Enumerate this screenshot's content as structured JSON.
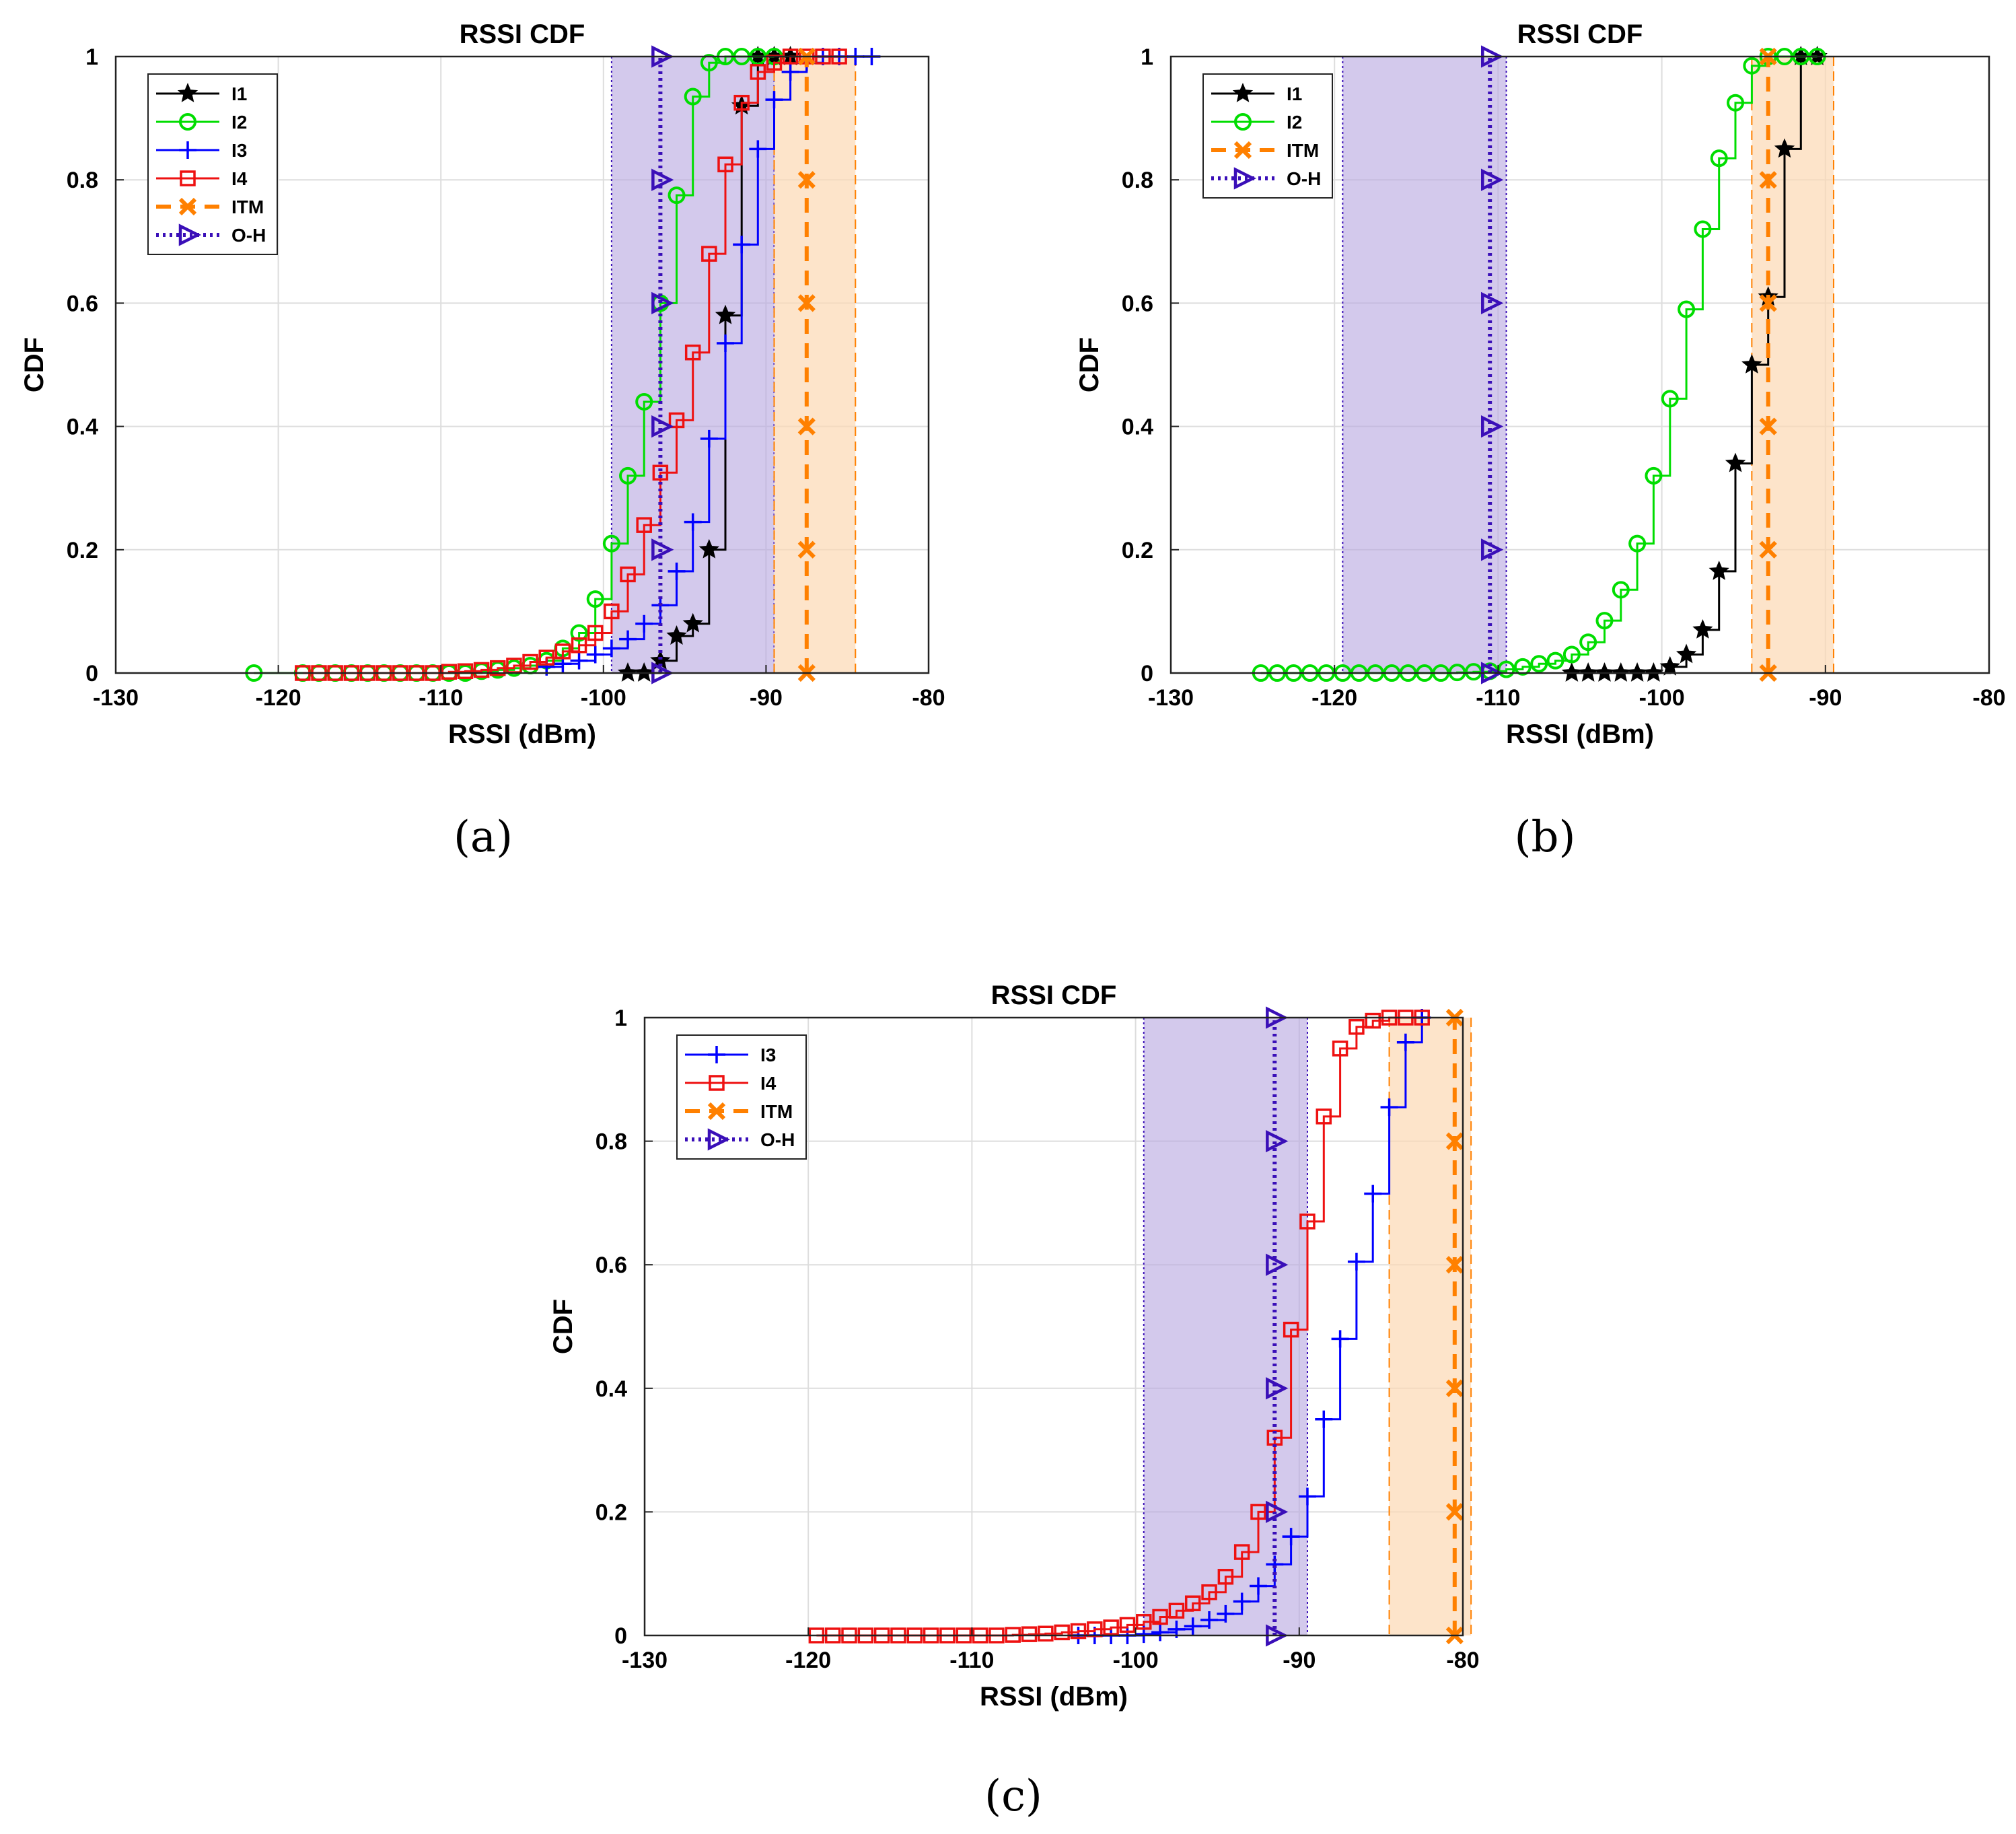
{
  "chart_data": [
    {
      "id": "a",
      "type": "line",
      "caption": "(a)",
      "title": "RSSI CDF",
      "xlabel": "RSSI (dBm)",
      "ylabel": "CDF",
      "xlim": [
        -130,
        -80
      ],
      "ylim": [
        0,
        1
      ],
      "xticks": [
        -130,
        -120,
        -110,
        -100,
        -90,
        -80
      ],
      "xtick_labels": [
        "-130",
        "-120",
        "-110",
        "-100",
        "-90",
        "-80"
      ],
      "yticks": [
        0,
        0.2,
        0.4,
        0.6,
        0.8,
        1
      ],
      "ytick_labels": [
        "0",
        "0.2",
        "0.4",
        "0.6",
        "0.8",
        "1"
      ],
      "grid": true,
      "legend_position": "top-left",
      "shaded_bands": [
        {
          "name": "O-H range",
          "x_from": -99.5,
          "x_to": -89.5,
          "color": "#b8a8e0"
        },
        {
          "name": "ITM range",
          "x_from": -89.5,
          "x_to": -84.5,
          "color": "#fcd9b4"
        }
      ],
      "series": [
        {
          "name": "I1",
          "color": "#000000",
          "marker": "star",
          "style": "solid",
          "x": [
            -98.5,
            -97.5,
            -96.5,
            -95.5,
            -94.5,
            -93.5,
            -92.5,
            -91.5,
            -90.5,
            -89.5,
            -88.5
          ],
          "y": [
            0,
            0,
            0.02,
            0.06,
            0.08,
            0.2,
            0.58,
            0.92,
            1,
            1,
            1
          ]
        },
        {
          "name": "I2",
          "color": "#00dd00",
          "marker": "circle",
          "style": "solid",
          "x": [
            -121.5,
            -118.5,
            -117.5,
            -116.5,
            -115.5,
            -114.5,
            -113.5,
            -112.5,
            -111.5,
            -110.5,
            -109.5,
            -108.5,
            -107.5,
            -106.5,
            -105.5,
            -104.5,
            -103.5,
            -102.5,
            -101.5,
            -100.5,
            -99.5,
            -98.5,
            -97.5,
            -96.5,
            -95.5,
            -94.5,
            -93.5,
            -92.5,
            -91.5,
            -90.5,
            -89.5
          ],
          "y": [
            0,
            0,
            0,
            0,
            0,
            0,
            0,
            0,
            0,
            0,
            0,
            0,
            0.003,
            0.005,
            0.008,
            0.012,
            0.02,
            0.04,
            0.065,
            0.12,
            0.21,
            0.32,
            0.44,
            0.6,
            0.775,
            0.935,
            0.99,
            1,
            1,
            1,
            1
          ]
        },
        {
          "name": "I3",
          "color": "#0000ff",
          "marker": "plus",
          "style": "solid",
          "x": [
            -103.5,
            -102.5,
            -101.5,
            -100.5,
            -99.5,
            -98.5,
            -97.5,
            -96.5,
            -95.5,
            -94.5,
            -93.5,
            -92.5,
            -91.5,
            -90.5,
            -89.5,
            -88.5,
            -87.5,
            -86.5,
            -85.5,
            -84.5,
            -83.5
          ],
          "y": [
            0.01,
            0.015,
            0.02,
            0.03,
            0.04,
            0.055,
            0.08,
            0.11,
            0.165,
            0.245,
            0.38,
            0.535,
            0.695,
            0.85,
            0.93,
            0.975,
            0.99,
            1,
            1,
            1,
            1
          ]
        },
        {
          "name": "I4",
          "color": "#ee1111",
          "marker": "square",
          "style": "solid",
          "x": [
            -118.5,
            -117.5,
            -116.5,
            -115.5,
            -114.5,
            -113.5,
            -112.5,
            -111.5,
            -110.5,
            -109.5,
            -108.5,
            -107.5,
            -106.5,
            -105.5,
            -104.5,
            -103.5,
            -102.5,
            -101.5,
            -100.5,
            -99.5,
            -98.5,
            -97.5,
            -96.5,
            -95.5,
            -94.5,
            -93.5,
            -92.5,
            -91.5,
            -90.5,
            -89.5,
            -88.5,
            -87.5,
            -86.5,
            -85.5
          ],
          "y": [
            0,
            0,
            0,
            0,
            0,
            0,
            0,
            0,
            0,
            0.002,
            0.003,
            0.005,
            0.008,
            0.012,
            0.018,
            0.025,
            0.035,
            0.045,
            0.065,
            0.1,
            0.16,
            0.24,
            0.325,
            0.41,
            0.52,
            0.68,
            0.825,
            0.925,
            0.975,
            0.99,
            1,
            1,
            1,
            1
          ]
        },
        {
          "name": "ITM",
          "color": "#ff8000",
          "marker": "x",
          "style": "dashed",
          "x": [
            -87.5,
            -87.5,
            -87.5,
            -87.5,
            -87.5,
            -87.5
          ],
          "y": [
            0,
            0.2,
            0.4,
            0.6,
            0.8,
            1
          ]
        },
        {
          "name": "O-H",
          "color": "#3a0fb8",
          "marker": "triangle-right",
          "style": "dotted",
          "x": [
            -96.5,
            -96.5,
            -96.5,
            -96.5,
            -96.5,
            -96.5
          ],
          "y": [
            0,
            0.2,
            0.4,
            0.6,
            0.8,
            1
          ]
        }
      ]
    },
    {
      "id": "b",
      "type": "line",
      "caption": "(b)",
      "title": "RSSI CDF",
      "xlabel": "RSSI (dBm)",
      "ylabel": "CDF",
      "xlim": [
        -130,
        -80
      ],
      "ylim": [
        0,
        1
      ],
      "xticks": [
        -130,
        -120,
        -110,
        -100,
        -90,
        -80
      ],
      "xtick_labels": [
        "-130",
        "-120",
        "-110",
        "-100",
        "-90",
        "-80"
      ],
      "yticks": [
        0,
        0.2,
        0.4,
        0.6,
        0.8,
        1
      ],
      "ytick_labels": [
        "0",
        "0.2",
        "0.4",
        "0.6",
        "0.8",
        "1"
      ],
      "grid": true,
      "legend_position": "top-left",
      "shaded_bands": [
        {
          "name": "O-H range",
          "x_from": -119.5,
          "x_to": -109.5,
          "color": "#b8a8e0"
        },
        {
          "name": "ITM range",
          "x_from": -94.5,
          "x_to": -89.5,
          "color": "#fcd9b4"
        }
      ],
      "series": [
        {
          "name": "I1",
          "color": "#000000",
          "marker": "star",
          "style": "solid",
          "x": [
            -105.5,
            -104.5,
            -103.5,
            -102.5,
            -101.5,
            -100.5,
            -99.5,
            -98.5,
            -97.5,
            -96.5,
            -95.5,
            -94.5,
            -93.5,
            -92.5,
            -91.5,
            -90.5
          ],
          "y": [
            0,
            0,
            0,
            0,
            0,
            0,
            0.01,
            0.03,
            0.07,
            0.165,
            0.34,
            0.5,
            0.61,
            0.85,
            1,
            1
          ]
        },
        {
          "name": "I2",
          "color": "#00dd00",
          "marker": "circle",
          "style": "solid",
          "x": [
            -124.5,
            -123.5,
            -122.5,
            -121.5,
            -120.5,
            -119.5,
            -118.5,
            -117.5,
            -116.5,
            -115.5,
            -114.5,
            -113.5,
            -112.5,
            -111.5,
            -110.5,
            -109.5,
            -108.5,
            -107.5,
            -106.5,
            -105.5,
            -104.5,
            -103.5,
            -102.5,
            -101.5,
            -100.5,
            -99.5,
            -98.5,
            -97.5,
            -96.5,
            -95.5,
            -94.5,
            -93.5,
            -92.5,
            -91.5,
            -90.5
          ],
          "y": [
            0,
            0,
            0,
            0,
            0,
            0,
            0,
            0,
            0,
            0,
            0,
            0,
            0.001,
            0.002,
            0.003,
            0.006,
            0.01,
            0.015,
            0.02,
            0.03,
            0.05,
            0.085,
            0.135,
            0.21,
            0.32,
            0.445,
            0.59,
            0.72,
            0.835,
            0.925,
            0.985,
            1,
            1,
            1,
            1
          ]
        },
        {
          "name": "ITM",
          "color": "#ff8000",
          "marker": "x",
          "style": "dashed",
          "x": [
            -93.5,
            -93.5,
            -93.5,
            -93.5,
            -93.5,
            -93.5
          ],
          "y": [
            0,
            0.2,
            0.4,
            0.6,
            0.8,
            1
          ]
        },
        {
          "name": "O-H",
          "color": "#3a0fb8",
          "marker": "triangle-right",
          "style": "dotted",
          "x": [
            -110.5,
            -110.5,
            -110.5,
            -110.5,
            -110.5,
            -110.5
          ],
          "y": [
            0,
            0.2,
            0.4,
            0.6,
            0.8,
            1
          ]
        }
      ]
    },
    {
      "id": "c",
      "type": "line",
      "caption": "(c)",
      "title": "RSSI CDF",
      "xlabel": "RSSI (dBm)",
      "ylabel": "CDF",
      "xlim": [
        -130,
        -80
      ],
      "ylim": [
        0,
        1
      ],
      "xticks": [
        -130,
        -120,
        -110,
        -100,
        -90,
        -80
      ],
      "xtick_labels": [
        "-130",
        "-120",
        "-110",
        "-100",
        "-90",
        "-80"
      ],
      "yticks": [
        0,
        0.2,
        0.4,
        0.6,
        0.8,
        1
      ],
      "ytick_labels": [
        "0",
        "0.2",
        "0.4",
        "0.6",
        "0.8",
        "1"
      ],
      "grid": true,
      "legend_position": "top-left",
      "shaded_bands": [
        {
          "name": "O-H range",
          "x_from": -99.5,
          "x_to": -89.5,
          "color": "#b8a8e0"
        },
        {
          "name": "ITM range",
          "x_from": -84.5,
          "x_to": -79.5,
          "color": "#fcd9b4"
        }
      ],
      "series": [
        {
          "name": "I3",
          "color": "#0000ff",
          "marker": "plus",
          "style": "solid",
          "x": [
            -103.5,
            -102.5,
            -101.5,
            -100.5,
            -99.5,
            -98.5,
            -97.5,
            -96.5,
            -95.5,
            -94.5,
            -93.5,
            -92.5,
            -91.5,
            -90.5,
            -89.5,
            -88.5,
            -87.5,
            -86.5,
            -85.5,
            -84.5,
            -83.5,
            -82.5
          ],
          "y": [
            0,
            0,
            0,
            0,
            0.002,
            0.005,
            0.01,
            0.015,
            0.025,
            0.035,
            0.055,
            0.08,
            0.115,
            0.16,
            0.225,
            0.35,
            0.48,
            0.605,
            0.715,
            0.855,
            0.96,
            1
          ]
        },
        {
          "name": "I4",
          "color": "#ee1111",
          "marker": "square",
          "style": "solid",
          "x": [
            -119.5,
            -118.5,
            -117.5,
            -116.5,
            -115.5,
            -114.5,
            -113.5,
            -112.5,
            -111.5,
            -110.5,
            -109.5,
            -108.5,
            -107.5,
            -106.5,
            -105.5,
            -104.5,
            -103.5,
            -102.5,
            -101.5,
            -100.5,
            -99.5,
            -98.5,
            -97.5,
            -96.5,
            -95.5,
            -94.5,
            -93.5,
            -92.5,
            -91.5,
            -90.5,
            -89.5,
            -88.5,
            -87.5,
            -86.5,
            -85.5,
            -84.5,
            -83.5,
            -82.5
          ],
          "y": [
            0,
            0,
            0,
            0,
            0,
            0,
            0,
            0,
            0,
            0,
            0,
            0,
            0.001,
            0.002,
            0.003,
            0.005,
            0.007,
            0.01,
            0.013,
            0.017,
            0.022,
            0.03,
            0.04,
            0.052,
            0.07,
            0.095,
            0.135,
            0.2,
            0.32,
            0.495,
            0.67,
            0.84,
            0.95,
            0.985,
            0.995,
            1,
            1,
            1
          ]
        },
        {
          "name": "ITM",
          "color": "#ff8000",
          "marker": "x",
          "style": "dashed",
          "x": [
            -80.5,
            -80.5,
            -80.5,
            -80.5,
            -80.5,
            -80.5
          ],
          "y": [
            0,
            0.2,
            0.4,
            0.6,
            0.8,
            1
          ]
        },
        {
          "name": "O-H",
          "color": "#3a0fb8",
          "marker": "triangle-right",
          "style": "dotted",
          "x": [
            -91.5,
            -91.5,
            -91.5,
            -91.5,
            -91.5,
            -91.5
          ],
          "y": [
            0,
            0.2,
            0.4,
            0.6,
            0.8,
            1
          ]
        }
      ]
    }
  ]
}
